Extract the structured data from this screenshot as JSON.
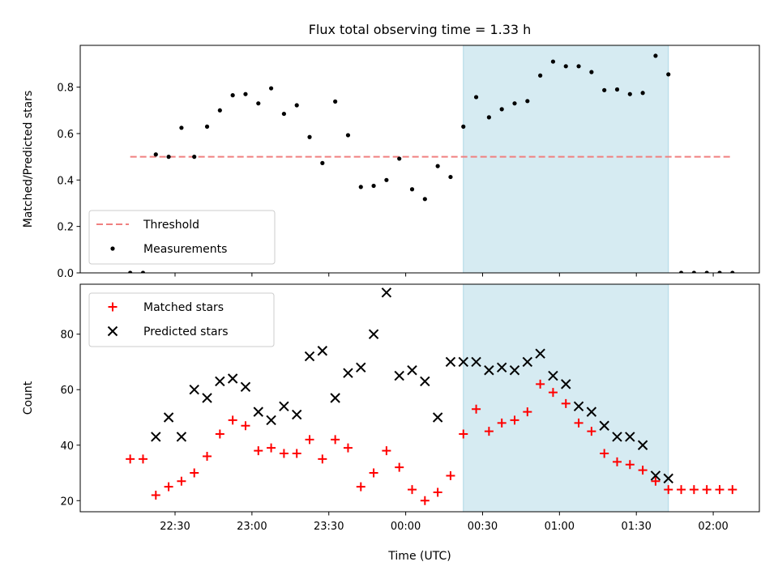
{
  "chart_data": {
    "title": "Flux total observing time = 1.33 h",
    "xlabel": "Time (UTC)",
    "x_unit": "minutes after 00:00 UTC (negative = previous day)",
    "xlim": [
      -127,
      138
    ],
    "xticks": [
      {
        "value": -90,
        "label": "22:30"
      },
      {
        "value": -60,
        "label": "23:00"
      },
      {
        "value": -30,
        "label": "23:30"
      },
      {
        "value": 0,
        "label": "00:00"
      },
      {
        "value": 30,
        "label": "00:30"
      },
      {
        "value": 60,
        "label": "01:00"
      },
      {
        "value": 90,
        "label": "01:30"
      },
      {
        "value": 120,
        "label": "02:00"
      }
    ],
    "shaded_region": {
      "x_from": 22.5,
      "x_to": 102.5,
      "color": "#add8e6"
    },
    "panels": [
      {
        "type": "scatter",
        "ylabel": "Matched/Predicted stars",
        "ylim": [
          0,
          0.98
        ],
        "yticks": [
          {
            "value": 0,
            "label": "0.0"
          },
          {
            "value": 0.2,
            "label": "0.2"
          },
          {
            "value": 0.4,
            "label": "0.4"
          },
          {
            "value": 0.6,
            "label": "0.6"
          },
          {
            "value": 0.8,
            "label": "0.8"
          }
        ],
        "threshold": {
          "name": "Threshold",
          "value": 0.5,
          "x_from": -107.5,
          "x_to": 127.5,
          "color": "#f08080"
        },
        "legend_position": "lower-left",
        "series": [
          {
            "name": "Measurements",
            "marker": "dot",
            "color": "#000000",
            "points": [
              [
                -107.5,
                0.0
              ],
              [
                -102.5,
                0.0
              ],
              [
                -97.5,
                0.51
              ],
              [
                -92.5,
                0.5
              ],
              [
                -87.5,
                0.625
              ],
              [
                -82.5,
                0.5
              ],
              [
                -77.5,
                0.63
              ],
              [
                -72.5,
                0.7
              ],
              [
                -67.5,
                0.765
              ],
              [
                -62.5,
                0.77
              ],
              [
                -57.5,
                0.73
              ],
              [
                -52.5,
                0.795
              ],
              [
                -47.5,
                0.685
              ],
              [
                -42.5,
                0.722
              ],
              [
                -37.5,
                0.585
              ],
              [
                -32.5,
                0.473
              ],
              [
                -27.5,
                0.738
              ],
              [
                -22.5,
                0.593
              ],
              [
                -17.5,
                0.37
              ],
              [
                -12.5,
                0.375
              ],
              [
                -7.5,
                0.4
              ],
              [
                -2.5,
                0.492
              ],
              [
                2.5,
                0.36
              ],
              [
                7.5,
                0.318
              ],
              [
                12.5,
                0.46
              ],
              [
                17.5,
                0.413
              ],
              [
                22.5,
                0.63
              ],
              [
                27.5,
                0.757
              ],
              [
                32.5,
                0.67
              ],
              [
                37.5,
                0.705
              ],
              [
                42.5,
                0.73
              ],
              [
                47.5,
                0.74
              ],
              [
                52.5,
                0.85
              ],
              [
                57.5,
                0.91
              ],
              [
                62.5,
                0.89
              ],
              [
                67.5,
                0.89
              ],
              [
                72.5,
                0.865
              ],
              [
                77.5,
                0.787
              ],
              [
                82.5,
                0.79
              ],
              [
                87.5,
                0.77
              ],
              [
                92.5,
                0.775
              ],
              [
                97.5,
                0.935
              ],
              [
                102.5,
                0.855
              ],
              [
                107.5,
                0.0
              ],
              [
                112.5,
                0.0
              ],
              [
                117.5,
                0.0
              ],
              [
                122.5,
                0.0
              ],
              [
                127.5,
                0.0
              ]
            ]
          }
        ]
      },
      {
        "type": "scatter",
        "ylabel": "Count",
        "ylim": [
          16,
          98
        ],
        "yticks": [
          {
            "value": 20,
            "label": "20"
          },
          {
            "value": 40,
            "label": "40"
          },
          {
            "value": 60,
            "label": "60"
          },
          {
            "value": 80,
            "label": "80"
          }
        ],
        "legend_position": "upper-left",
        "series": [
          {
            "name": "Matched stars",
            "marker": "plus",
            "color": "#ff0000",
            "points": [
              [
                -107.5,
                35
              ],
              [
                -102.5,
                35
              ],
              [
                -97.5,
                22
              ],
              [
                -92.5,
                25
              ],
              [
                -87.5,
                27
              ],
              [
                -82.5,
                30
              ],
              [
                -77.5,
                36
              ],
              [
                -72.5,
                44
              ],
              [
                -67.5,
                49
              ],
              [
                -62.5,
                47
              ],
              [
                -57.5,
                38
              ],
              [
                -52.5,
                39
              ],
              [
                -47.5,
                37
              ],
              [
                -42.5,
                37
              ],
              [
                -37.5,
                42
              ],
              [
                -32.5,
                35
              ],
              [
                -27.5,
                42
              ],
              [
                -22.5,
                39
              ],
              [
                -17.5,
                25
              ],
              [
                -12.5,
                30
              ],
              [
                -7.5,
                38
              ],
              [
                -2.5,
                32
              ],
              [
                2.5,
                24
              ],
              [
                7.5,
                20
              ],
              [
                12.5,
                23
              ],
              [
                17.5,
                29
              ],
              [
                22.5,
                44
              ],
              [
                27.5,
                53
              ],
              [
                32.5,
                45
              ],
              [
                37.5,
                48
              ],
              [
                42.5,
                49
              ],
              [
                47.5,
                52
              ],
              [
                52.5,
                62
              ],
              [
                57.5,
                59
              ],
              [
                62.5,
                55
              ],
              [
                67.5,
                48
              ],
              [
                72.5,
                45
              ],
              [
                77.5,
                37
              ],
              [
                82.5,
                34
              ],
              [
                87.5,
                33
              ],
              [
                92.5,
                31
              ],
              [
                97.5,
                27
              ],
              [
                102.5,
                24
              ],
              [
                107.5,
                24
              ],
              [
                112.5,
                24
              ],
              [
                117.5,
                24
              ],
              [
                122.5,
                24
              ],
              [
                127.5,
                24
              ]
            ]
          },
          {
            "name": "Predicted stars",
            "marker": "x",
            "color": "#000000",
            "points": [
              [
                -97.5,
                43
              ],
              [
                -92.5,
                50
              ],
              [
                -87.5,
                43
              ],
              [
                -82.5,
                60
              ],
              [
                -77.5,
                57
              ],
              [
                -72.5,
                63
              ],
              [
                -67.5,
                64
              ],
              [
                -62.5,
                61
              ],
              [
                -57.5,
                52
              ],
              [
                -52.5,
                49
              ],
              [
                -47.5,
                54
              ],
              [
                -42.5,
                51
              ],
              [
                -37.5,
                72
              ],
              [
                -32.5,
                74
              ],
              [
                -27.5,
                57
              ],
              [
                -22.5,
                66
              ],
              [
                -17.5,
                68
              ],
              [
                -12.5,
                80
              ],
              [
                -7.5,
                95
              ],
              [
                -2.5,
                65
              ],
              [
                2.5,
                67
              ],
              [
                7.5,
                63
              ],
              [
                12.5,
                50
              ],
              [
                17.5,
                70
              ],
              [
                22.5,
                70
              ],
              [
                27.5,
                70
              ],
              [
                32.5,
                67
              ],
              [
                37.5,
                68
              ],
              [
                42.5,
                67
              ],
              [
                47.5,
                70
              ],
              [
                52.5,
                73
              ],
              [
                57.5,
                65
              ],
              [
                62.5,
                62
              ],
              [
                67.5,
                54
              ],
              [
                72.5,
                52
              ],
              [
                77.5,
                47
              ],
              [
                82.5,
                43
              ],
              [
                87.5,
                43
              ],
              [
                92.5,
                40
              ],
              [
                97.5,
                29
              ],
              [
                102.5,
                28
              ]
            ]
          }
        ]
      }
    ]
  }
}
